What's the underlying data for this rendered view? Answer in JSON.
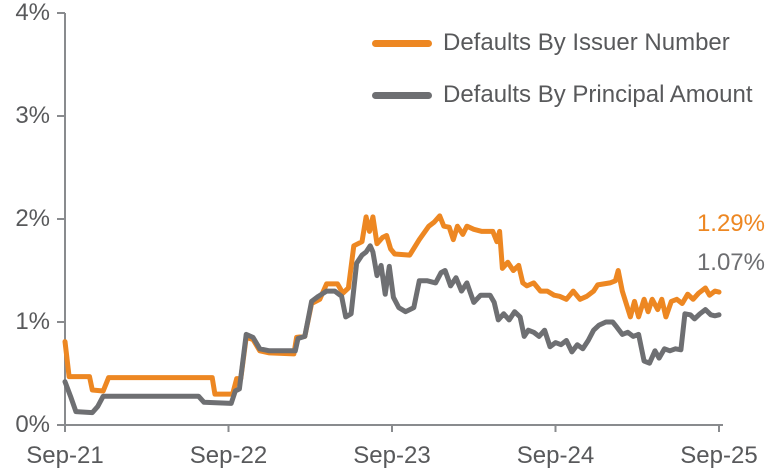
{
  "chart_data": {
    "type": "line",
    "title": "",
    "x_tick_labels": [
      "Sep-21",
      "Sep-22",
      "Sep-23",
      "Sep-24",
      "Sep-25"
    ],
    "y_tick_labels": [
      "0%",
      "1%",
      "2%",
      "3%",
      "4%"
    ],
    "y_axis_range": [
      0,
      4
    ],
    "y_unit": "percent",
    "x_range_months": 48,
    "grid": "off",
    "legend_position": "top-right",
    "axis_color": "#898B8E",
    "label_color": "#58595B",
    "series": [
      {
        "name": "Defaults By Issuer Number",
        "color": "#ED8722",
        "end_label": "1.29%",
        "end_value": 1.29,
        "points": [
          [
            0,
            0.81
          ],
          [
            0.3,
            0.47
          ],
          [
            1.8,
            0.47
          ],
          [
            2.0,
            0.34
          ],
          [
            2.8,
            0.33
          ],
          [
            3.2,
            0.46
          ],
          [
            10.8,
            0.46
          ],
          [
            11.0,
            0.3
          ],
          [
            12.3,
            0.3
          ],
          [
            12.6,
            0.45
          ],
          [
            12.9,
            0.45
          ],
          [
            13.3,
            0.85
          ],
          [
            13.8,
            0.83
          ],
          [
            14.3,
            0.72
          ],
          [
            15.0,
            0.7
          ],
          [
            16.8,
            0.69
          ],
          [
            17.0,
            0.85
          ],
          [
            17.6,
            0.86
          ],
          [
            18.1,
            1.18
          ],
          [
            18.7,
            1.22
          ],
          [
            19.2,
            1.37
          ],
          [
            20.0,
            1.37
          ],
          [
            20.4,
            1.28
          ],
          [
            20.8,
            1.33
          ],
          [
            21.2,
            1.74
          ],
          [
            21.8,
            1.78
          ],
          [
            22.1,
            2.02
          ],
          [
            22.35,
            1.88
          ],
          [
            22.6,
            2.02
          ],
          [
            22.9,
            1.76
          ],
          [
            23.3,
            1.82
          ],
          [
            23.6,
            1.84
          ],
          [
            23.9,
            1.71
          ],
          [
            24.2,
            1.66
          ],
          [
            25.3,
            1.65
          ],
          [
            26.0,
            1.8
          ],
          [
            26.7,
            1.93
          ],
          [
            27.1,
            1.97
          ],
          [
            27.5,
            2.03
          ],
          [
            27.8,
            1.93
          ],
          [
            28.2,
            1.92
          ],
          [
            28.5,
            1.8
          ],
          [
            28.8,
            1.93
          ],
          [
            29.2,
            1.85
          ],
          [
            29.5,
            1.93
          ],
          [
            30.0,
            1.9
          ],
          [
            30.6,
            1.88
          ],
          [
            31.4,
            1.88
          ],
          [
            31.7,
            1.78
          ],
          [
            31.9,
            1.88
          ],
          [
            32.1,
            1.52
          ],
          [
            32.5,
            1.58
          ],
          [
            32.9,
            1.5
          ],
          [
            33.3,
            1.55
          ],
          [
            33.6,
            1.38
          ],
          [
            33.9,
            1.35
          ],
          [
            34.4,
            1.38
          ],
          [
            34.9,
            1.3
          ],
          [
            35.4,
            1.3
          ],
          [
            35.9,
            1.26
          ],
          [
            36.3,
            1.25
          ],
          [
            36.8,
            1.22
          ],
          [
            37.3,
            1.3
          ],
          [
            37.8,
            1.22
          ],
          [
            38.3,
            1.25
          ],
          [
            38.8,
            1.3
          ],
          [
            39.1,
            1.36
          ],
          [
            40.0,
            1.38
          ],
          [
            40.4,
            1.4
          ],
          [
            40.6,
            1.5
          ],
          [
            40.9,
            1.3
          ],
          [
            41.5,
            1.05
          ],
          [
            41.8,
            1.2
          ],
          [
            42.1,
            1.05
          ],
          [
            42.5,
            1.22
          ],
          [
            42.8,
            1.1
          ],
          [
            43.1,
            1.22
          ],
          [
            43.5,
            1.12
          ],
          [
            43.8,
            1.22
          ],
          [
            44.1,
            1.05
          ],
          [
            44.5,
            1.2
          ],
          [
            44.9,
            1.22
          ],
          [
            45.3,
            1.18
          ],
          [
            45.7,
            1.27
          ],
          [
            46.1,
            1.22
          ],
          [
            46.5,
            1.28
          ],
          [
            47.0,
            1.33
          ],
          [
            47.3,
            1.26
          ],
          [
            47.7,
            1.3
          ],
          [
            48.0,
            1.29
          ]
        ]
      },
      {
        "name": "Defaults By Principal Amount",
        "color": "#6E6F72",
        "end_label": "1.07%",
        "end_value": 1.07,
        "points": [
          [
            0,
            0.42
          ],
          [
            0.4,
            0.28
          ],
          [
            0.8,
            0.13
          ],
          [
            2.0,
            0.12
          ],
          [
            2.4,
            0.18
          ],
          [
            2.8,
            0.28
          ],
          [
            9.8,
            0.28
          ],
          [
            10.2,
            0.22
          ],
          [
            12.2,
            0.21
          ],
          [
            12.5,
            0.33
          ],
          [
            12.8,
            0.35
          ],
          [
            13.3,
            0.88
          ],
          [
            13.8,
            0.85
          ],
          [
            14.3,
            0.74
          ],
          [
            15.0,
            0.72
          ],
          [
            16.9,
            0.72
          ],
          [
            17.1,
            0.84
          ],
          [
            17.6,
            0.86
          ],
          [
            18.1,
            1.2
          ],
          [
            18.6,
            1.25
          ],
          [
            19.2,
            1.3
          ],
          [
            19.8,
            1.3
          ],
          [
            20.3,
            1.25
          ],
          [
            20.6,
            1.05
          ],
          [
            21.0,
            1.08
          ],
          [
            21.4,
            1.57
          ],
          [
            21.8,
            1.65
          ],
          [
            22.1,
            1.68
          ],
          [
            22.4,
            1.74
          ],
          [
            22.6,
            1.68
          ],
          [
            22.9,
            1.45
          ],
          [
            23.2,
            1.55
          ],
          [
            23.5,
            1.27
          ],
          [
            23.8,
            1.54
          ],
          [
            24.1,
            1.24
          ],
          [
            24.5,
            1.14
          ],
          [
            25.0,
            1.1
          ],
          [
            25.6,
            1.14
          ],
          [
            26.0,
            1.4
          ],
          [
            26.6,
            1.4
          ],
          [
            27.2,
            1.38
          ],
          [
            27.6,
            1.48
          ],
          [
            27.9,
            1.5
          ],
          [
            28.3,
            1.35
          ],
          [
            28.7,
            1.43
          ],
          [
            29.1,
            1.3
          ],
          [
            29.5,
            1.38
          ],
          [
            30.0,
            1.19
          ],
          [
            30.5,
            1.26
          ],
          [
            31.2,
            1.26
          ],
          [
            31.5,
            1.19
          ],
          [
            31.8,
            1.02
          ],
          [
            32.2,
            1.08
          ],
          [
            32.6,
            1.02
          ],
          [
            33.0,
            1.1
          ],
          [
            33.4,
            1.05
          ],
          [
            33.7,
            0.86
          ],
          [
            34.0,
            0.92
          ],
          [
            34.4,
            0.9
          ],
          [
            34.8,
            0.86
          ],
          [
            35.2,
            0.92
          ],
          [
            35.6,
            0.76
          ],
          [
            36.0,
            0.8
          ],
          [
            36.4,
            0.78
          ],
          [
            36.8,
            0.82
          ],
          [
            37.2,
            0.71
          ],
          [
            37.6,
            0.78
          ],
          [
            38.0,
            0.74
          ],
          [
            38.4,
            0.82
          ],
          [
            38.8,
            0.92
          ],
          [
            39.2,
            0.97
          ],
          [
            39.7,
            1.0
          ],
          [
            40.2,
            1.0
          ],
          [
            40.5,
            0.95
          ],
          [
            40.9,
            0.88
          ],
          [
            41.3,
            0.9
          ],
          [
            41.7,
            0.86
          ],
          [
            42.1,
            0.88
          ],
          [
            42.5,
            0.62
          ],
          [
            42.9,
            0.6
          ],
          [
            43.3,
            0.72
          ],
          [
            43.6,
            0.65
          ],
          [
            44.0,
            0.74
          ],
          [
            44.4,
            0.72
          ],
          [
            44.8,
            0.74
          ],
          [
            45.2,
            0.73
          ],
          [
            45.5,
            1.08
          ],
          [
            45.9,
            1.07
          ],
          [
            46.2,
            1.03
          ],
          [
            46.6,
            1.08
          ],
          [
            47.0,
            1.12
          ],
          [
            47.4,
            1.07
          ],
          [
            47.7,
            1.06
          ],
          [
            48.0,
            1.07
          ]
        ]
      }
    ]
  }
}
